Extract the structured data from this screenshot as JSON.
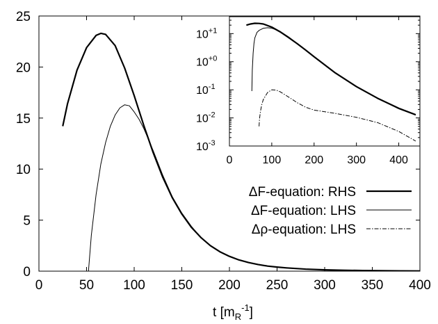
{
  "chart_data": [
    {
      "panel": "main",
      "type": "line",
      "xlabel": "t [m_R^-1]",
      "xlabel_parts": {
        "base": "t [m",
        "sub": "R",
        "sup": "-1",
        "close": "]"
      },
      "ylabel": "",
      "xlim": [
        0,
        400
      ],
      "ylim": [
        0,
        25
      ],
      "xticks": [
        "0",
        "50",
        "100",
        "150",
        "200",
        "250",
        "300",
        "350",
        "400"
      ],
      "yticks": [
        "0",
        "5",
        "10",
        "15",
        "20",
        "25"
      ],
      "legend": {
        "placement": "right-middle"
      },
      "series": [
        {
          "name": "ΔF-equation: RHS",
          "style": "thick-solid",
          "x": [
            25,
            30,
            40,
            50,
            60,
            65,
            70,
            80,
            90,
            100,
            110,
            120,
            130,
            140,
            150,
            160,
            170,
            180,
            190,
            200,
            210,
            220,
            230,
            240,
            250,
            260,
            280,
            300,
            320,
            340,
            360,
            380,
            400
          ],
          "y": [
            14.2,
            16.4,
            19.7,
            21.9,
            23.1,
            23.3,
            23.2,
            22.1,
            19.9,
            17.2,
            14.3,
            11.6,
            9.2,
            7.2,
            5.6,
            4.3,
            3.3,
            2.5,
            1.9,
            1.45,
            1.1,
            0.85,
            0.65,
            0.5,
            0.4,
            0.32,
            0.2,
            0.13,
            0.09,
            0.06,
            0.04,
            0.03,
            0.02
          ]
        },
        {
          "name": "ΔF-equation: LHS",
          "style": "thin-solid",
          "x": [
            52,
            55,
            60,
            65,
            70,
            75,
            80,
            85,
            90,
            95,
            100,
            105,
            110,
            115,
            120,
            130,
            140,
            150,
            160,
            170,
            180,
            190,
            200,
            210,
            220,
            230,
            240,
            250,
            260,
            280,
            300,
            320,
            340,
            360,
            380,
            400
          ],
          "y": [
            0,
            3.5,
            7.5,
            10.5,
            12.6,
            14.2,
            15.3,
            16.0,
            16.3,
            16.2,
            15.6,
            14.9,
            14.0,
            12.9,
            11.8,
            9.4,
            7.3,
            5.7,
            4.4,
            3.3,
            2.5,
            1.9,
            1.45,
            1.1,
            0.85,
            0.65,
            0.5,
            0.4,
            0.32,
            0.2,
            0.13,
            0.09,
            0.06,
            0.04,
            0.03,
            0.02
          ]
        },
        {
          "name": "Δρ-equation: LHS",
          "style": "dash-dot",
          "x": [
            70,
            80,
            90,
            100,
            110,
            120,
            140,
            160,
            180,
            200,
            250,
            300,
            350,
            400,
            440
          ],
          "y": [
            0,
            0.03,
            0.06,
            0.09,
            0.1,
            0.1,
            0.07,
            0.045,
            0.03,
            0.022,
            0.016,
            0.012,
            0.008,
            0.0045,
            0.0015
          ]
        }
      ]
    },
    {
      "panel": "inset",
      "type": "line",
      "yscale": "log",
      "xlim": [
        0,
        450
      ],
      "ylim": [
        0.001,
        40
      ],
      "xticks": [
        "0",
        "100",
        "200",
        "300",
        "400"
      ],
      "yticks": [
        {
          "base": "10",
          "exp": "-3"
        },
        {
          "base": "10",
          "exp": "-2"
        },
        {
          "base": "10",
          "exp": "-1"
        },
        {
          "base": "10",
          "exp": "+0"
        },
        {
          "base": "10",
          "exp": "+1"
        }
      ],
      "series": [
        {
          "name": "ΔF-equation: RHS",
          "style": "thick-solid",
          "x": [
            40,
            50,
            60,
            70,
            80,
            100,
            120,
            140,
            160,
            180,
            200,
            250,
            300,
            350,
            400,
            440
          ],
          "y": [
            20,
            22,
            23.3,
            23,
            22,
            17,
            11.5,
            7.2,
            4.4,
            2.6,
            1.5,
            0.4,
            0.13,
            0.05,
            0.022,
            0.013
          ]
        },
        {
          "name": "ΔF-equation: LHS",
          "style": "thin-solid",
          "x": [
            53,
            54,
            56,
            58,
            60,
            65,
            70,
            80,
            90,
            100,
            120,
            140,
            160,
            180,
            200,
            250,
            300,
            350,
            400,
            440
          ],
          "y": [
            0.09,
            0.5,
            2,
            4.5,
            7,
            11,
            13,
            15.5,
            16.2,
            15.6,
            12,
            7.6,
            4.5,
            2.6,
            1.5,
            0.4,
            0.13,
            0.05,
            0.021,
            0.0125
          ]
        },
        {
          "name": "Δρ-equation: LHS",
          "style": "dash-dot",
          "x": [
            70,
            71,
            73,
            76,
            80,
            90,
            100,
            110,
            120,
            140,
            160,
            180,
            200,
            250,
            300,
            350,
            400,
            440
          ],
          "y": [
            0.005,
            0.009,
            0.016,
            0.028,
            0.045,
            0.08,
            0.1,
            0.098,
            0.085,
            0.055,
            0.035,
            0.024,
            0.019,
            0.0145,
            0.0105,
            0.0068,
            0.0033,
            0.0015
          ]
        }
      ]
    }
  ]
}
